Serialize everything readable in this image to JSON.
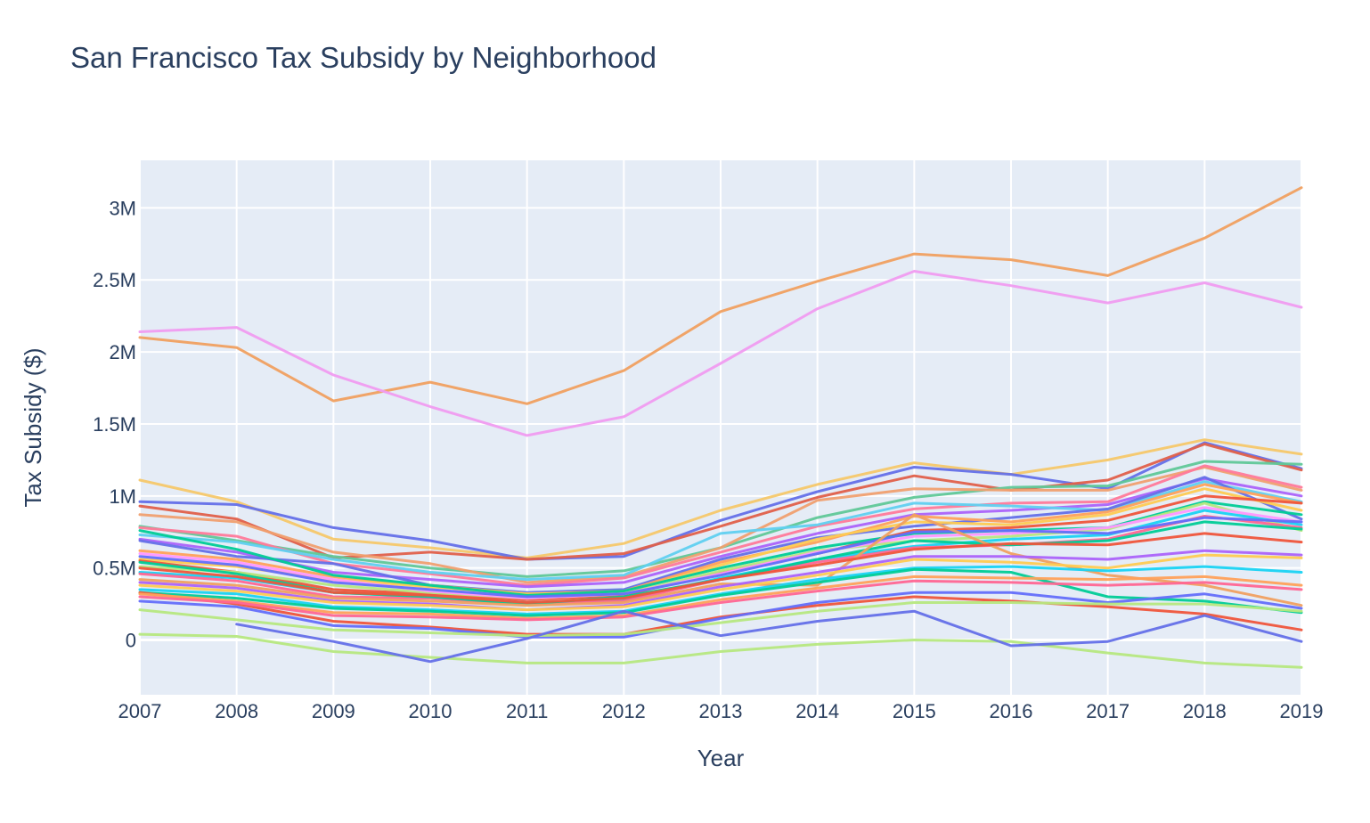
{
  "chart_data": {
    "type": "line",
    "title": "San Francisco Tax Subsidy by Neighborhood",
    "xlabel": "Year",
    "ylabel": "Tax Subsidy ($)",
    "x": [
      2007,
      2008,
      2009,
      2010,
      2011,
      2012,
      2013,
      2014,
      2015,
      2016,
      2017,
      2018,
      2019
    ],
    "xlim": [
      2007,
      2019
    ],
    "ylim": [
      -380000,
      3330000
    ],
    "y_ticks": [
      0,
      500000,
      1000000,
      1500000,
      2000000,
      2500000,
      3000000
    ],
    "y_tick_labels": [
      "0",
      "0.5M",
      "1M",
      "1.5M",
      "2M",
      "2.5M",
      "3M"
    ],
    "x_tick_labels": [
      "2007",
      "2008",
      "2009",
      "2010",
      "2011",
      "2012",
      "2013",
      "2014",
      "2015",
      "2016",
      "2017",
      "2018",
      "2019"
    ],
    "grid": true,
    "legend": "none",
    "colors": [
      "#636efa",
      "#EF553B",
      "#00cc96",
      "#ab63fa",
      "#FFA15A",
      "#19d3f3",
      "#FF6692",
      "#B6E880",
      "#FF97FF",
      "#FECB52"
    ],
    "series": [
      {
        "color": "#f0a060",
        "values": [
          2100000,
          2030000,
          1660000,
          1790000,
          1640000,
          1870000,
          2280000,
          2490000,
          2680000,
          2640000,
          2530000,
          2790000,
          3140000
        ]
      },
      {
        "color": "#f09cf0",
        "values": [
          2140000,
          2170000,
          1840000,
          1620000,
          1420000,
          1550000,
          1920000,
          2300000,
          2560000,
          2460000,
          2340000,
          2480000,
          2310000
        ]
      },
      {
        "color": "#f5c86a",
        "values": [
          1110000,
          960000,
          700000,
          640000,
          570000,
          670000,
          900000,
          1080000,
          1230000,
          1150000,
          1250000,
          1390000,
          1290000
        ]
      },
      {
        "color": "#6470e8",
        "values": [
          960000,
          940000,
          780000,
          690000,
          560000,
          580000,
          830000,
          1030000,
          1200000,
          1150000,
          1050000,
          1370000,
          1190000
        ]
      },
      {
        "color": "#e0604a",
        "values": [
          930000,
          840000,
          570000,
          610000,
          560000,
          600000,
          790000,
          990000,
          1140000,
          1040000,
          1110000,
          1360000,
          1180000
        ]
      },
      {
        "color": "#60c898",
        "values": [
          790000,
          690000,
          580000,
          500000,
          440000,
          480000,
          640000,
          850000,
          990000,
          1060000,
          1070000,
          1240000,
          1220000
        ]
      },
      {
        "color": "#f0a070",
        "values": [
          870000,
          820000,
          610000,
          530000,
          400000,
          440000,
          640000,
          970000,
          1050000,
          1040000,
          1040000,
          1200000,
          1040000
        ]
      },
      {
        "color": "#ff7a9a",
        "values": [
          780000,
          720000,
          530000,
          460000,
          380000,
          430000,
          610000,
          790000,
          910000,
          950000,
          960000,
          1210000,
          1060000
        ]
      },
      {
        "color": "#ab63fa",
        "values": [
          700000,
          610000,
          470000,
          420000,
          370000,
          400000,
          580000,
          740000,
          870000,
          900000,
          940000,
          1120000,
          1000000
        ]
      },
      {
        "color": "#60d0f0",
        "values": [
          730000,
          680000,
          560000,
          470000,
          420000,
          450000,
          740000,
          800000,
          950000,
          930000,
          900000,
          1100000,
          960000
        ]
      },
      {
        "color": "#6470e8",
        "values": [
          690000,
          580000,
          530000,
          380000,
          330000,
          350000,
          560000,
          710000,
          790000,
          850000,
          910000,
          1130000,
          840000
        ]
      },
      {
        "color": "#FFA15A",
        "values": [
          620000,
          560000,
          440000,
          380000,
          320000,
          340000,
          540000,
          680000,
          860000,
          820000,
          890000,
          1080000,
          950000
        ]
      },
      {
        "color": "#FECB52",
        "values": [
          560000,
          510000,
          420000,
          370000,
          320000,
          330000,
          520000,
          700000,
          820000,
          800000,
          870000,
          1050000,
          900000
        ]
      },
      {
        "color": "#EF553B",
        "values": [
          550000,
          470000,
          350000,
          320000,
          280000,
          310000,
          470000,
          600000,
          760000,
          780000,
          830000,
          1000000,
          950000
        ]
      },
      {
        "color": "#00cc96",
        "values": [
          760000,
          630000,
          450000,
          380000,
          310000,
          340000,
          500000,
          640000,
          740000,
          760000,
          780000,
          960000,
          870000
        ]
      },
      {
        "color": "#B6E880",
        "values": [
          510000,
          470000,
          380000,
          330000,
          290000,
          320000,
          480000,
          620000,
          690000,
          720000,
          770000,
          950000,
          760000
        ]
      },
      {
        "color": "#FF97FF",
        "values": [
          600000,
          540000,
          420000,
          340000,
          290000,
          320000,
          460000,
          610000,
          720000,
          740000,
          780000,
          920000,
          820000
        ]
      },
      {
        "color": "#19d3f3",
        "values": [
          470000,
          430000,
          330000,
          300000,
          260000,
          280000,
          430000,
          560000,
          650000,
          700000,
          730000,
          900000,
          800000
        ]
      },
      {
        "color": "#FF6692",
        "values": [
          460000,
          410000,
          300000,
          290000,
          250000,
          270000,
          420000,
          540000,
          640000,
          660000,
          700000,
          860000,
          780000
        ]
      },
      {
        "color": "#636efa",
        "values": [
          580000,
          520000,
          400000,
          350000,
          300000,
          320000,
          450000,
          600000,
          750000,
          760000,
          740000,
          850000,
          820000
        ]
      },
      {
        "color": "#00cc96",
        "values": [
          540000,
          460000,
          330000,
          300000,
          250000,
          300000,
          420000,
          560000,
          690000,
          660000,
          690000,
          820000,
          770000
        ]
      },
      {
        "color": "#f0a060",
        "values": [
          420000,
          380000,
          290000,
          270000,
          240000,
          260000,
          390000,
          380000,
          870000,
          600000,
          450000,
          380000,
          240000
        ]
      },
      {
        "color": "#EF553B",
        "values": [
          500000,
          440000,
          330000,
          310000,
          260000,
          290000,
          420000,
          520000,
          630000,
          670000,
          660000,
          740000,
          680000
        ]
      },
      {
        "color": "#ab63fa",
        "values": [
          400000,
          360000,
          270000,
          250000,
          210000,
          240000,
          370000,
          470000,
          580000,
          580000,
          560000,
          620000,
          590000
        ]
      },
      {
        "color": "#FECB52",
        "values": [
          380000,
          340000,
          260000,
          240000,
          210000,
          230000,
          350000,
          450000,
          560000,
          540000,
          500000,
          590000,
          570000
        ]
      },
      {
        "color": "#19d3f3",
        "values": [
          350000,
          320000,
          230000,
          210000,
          180000,
          200000,
          320000,
          420000,
          500000,
          510000,
          480000,
          510000,
          470000
        ]
      },
      {
        "color": "#00cc96",
        "values": [
          330000,
          290000,
          220000,
          200000,
          170000,
          190000,
          310000,
          400000,
          490000,
          470000,
          300000,
          270000,
          190000
        ]
      },
      {
        "color": "#EF553B",
        "values": [
          330000,
          250000,
          130000,
          90000,
          40000,
          40000,
          160000,
          240000,
          300000,
          270000,
          230000,
          180000,
          70000
        ]
      },
      {
        "color": "#636efa",
        "values": [
          270000,
          230000,
          100000,
          80000,
          20000,
          20000,
          150000,
          260000,
          330000,
          330000,
          260000,
          320000,
          220000
        ]
      },
      {
        "color": "#FFA15A",
        "values": [
          320000,
          270000,
          190000,
          180000,
          150000,
          170000,
          280000,
          360000,
          440000,
          430000,
          420000,
          440000,
          380000
        ]
      },
      {
        "color": "#FF6692",
        "values": [
          300000,
          260000,
          170000,
          160000,
          140000,
          160000,
          260000,
          340000,
          410000,
          400000,
          380000,
          400000,
          350000
        ]
      },
      {
        "color": "#B6E880",
        "values": [
          210000,
          140000,
          70000,
          50000,
          30000,
          40000,
          120000,
          200000,
          260000,
          260000,
          250000,
          250000,
          200000
        ]
      },
      {
        "color": "#B6E880",
        "values": [
          40000,
          25000,
          -80000,
          -120000,
          -160000,
          -160000,
          -80000,
          -30000,
          0,
          -10000,
          -90000,
          -160000,
          -190000
        ]
      },
      {
        "color": "#6470e8",
        "values": [
          null,
          110000,
          -10000,
          -150000,
          10000,
          200000,
          30000,
          130000,
          200000,
          -40000,
          -10000,
          170000,
          -10000
        ]
      }
    ]
  }
}
